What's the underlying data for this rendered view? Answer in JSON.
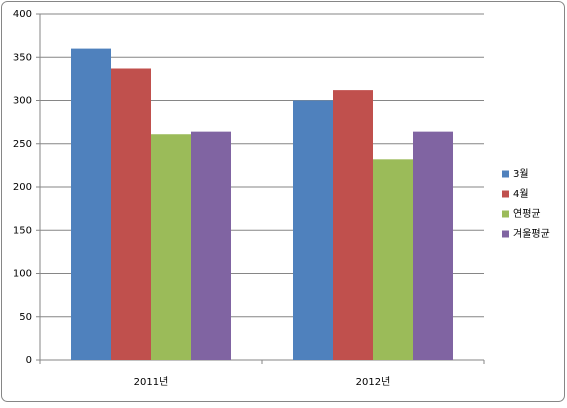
{
  "chart_data": {
    "type": "bar",
    "categories": [
      "2011년",
      "2012년"
    ],
    "series": [
      {
        "name": "3월",
        "color": "#4f81bd",
        "values": [
          360,
          300
        ]
      },
      {
        "name": "4월",
        "color": "#c0504d",
        "values": [
          337,
          312
        ]
      },
      {
        "name": "연평균",
        "color": "#9bbb59",
        "values": [
          261,
          232
        ]
      },
      {
        "name": "겨울평균",
        "color": "#8064a2",
        "values": [
          264,
          264
        ]
      }
    ],
    "ylim": [
      0,
      400
    ],
    "yticks": [
      0,
      50,
      100,
      150,
      200,
      250,
      300,
      350,
      400
    ],
    "grid": true,
    "legend": "right"
  }
}
